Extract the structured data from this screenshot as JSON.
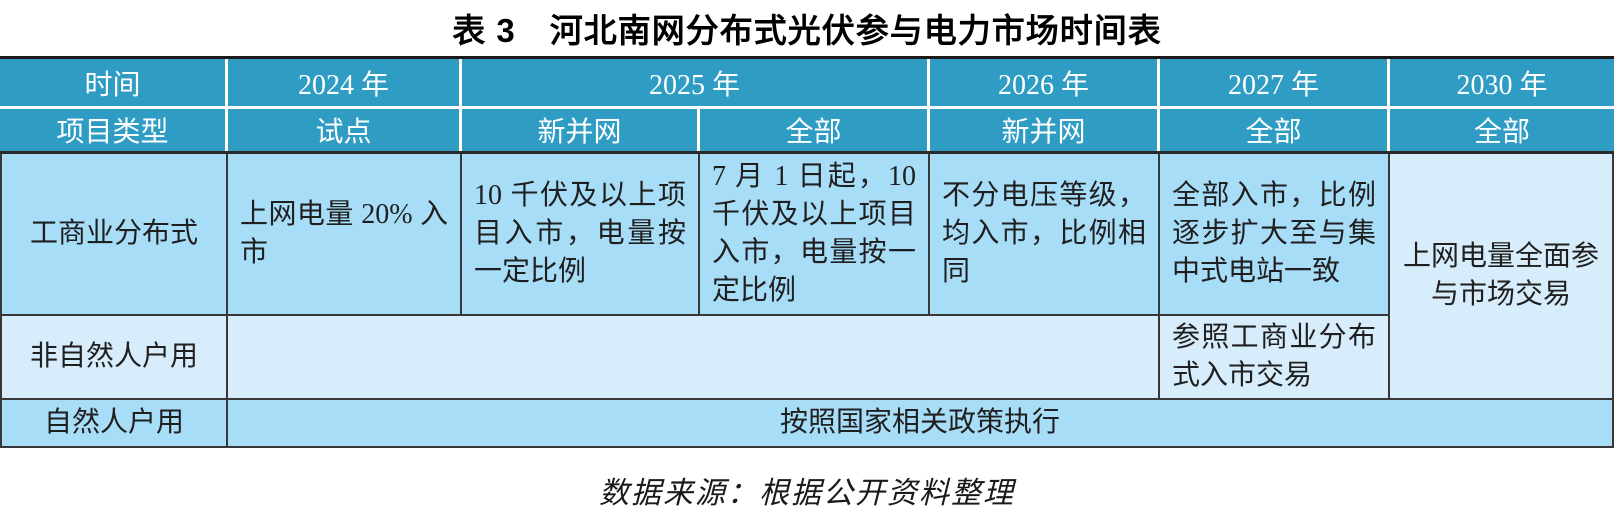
{
  "title": {
    "tag": "表 3",
    "text": "河北南网分布式光伏参与电力市场时间表"
  },
  "header": {
    "time_label": "时间",
    "project_type_label": "项目类型",
    "years": {
      "y2024": "2024 年",
      "y2025": "2025 年",
      "y2026": "2026 年",
      "y2027": "2027 年",
      "y2030": "2030 年"
    },
    "phases": {
      "p2024": "试点",
      "p2025_new": "新并网",
      "p2025_all": "全部",
      "p2026_new": "新并网",
      "p2027_all": "全部",
      "p2030_all": "全部"
    }
  },
  "body": {
    "commercial": {
      "label": "工商业分布式",
      "y2024": "上网电量 20% 入市",
      "y2025_new": "10 千伏及以上项目入市，电量按一定比例",
      "y2025_all": "7 月 1 日起，10 千伏及以上项目入市，电量按一定比例",
      "y2026": "不分电压等级，均入市，比例相同",
      "y2027": "全部入市，比例逐步扩大至与集中式电站一致"
    },
    "non_natural": {
      "label": "非自然人户用",
      "y2024_2026": "",
      "y2027": "参照工商业分布式入市交易"
    },
    "y2030_merged": "上网电量全面参与市场交易",
    "natural": {
      "label": "自然人户用",
      "all_years": "按照国家相关政策执行"
    }
  },
  "footer": {
    "source_note": "数据来源：根据公开资料整理"
  },
  "colors": {
    "header_bg": "#2f9cc4",
    "row_medium": "#a8ddf8",
    "row_light": "#d8edfb",
    "grid_line_dark": "#383838",
    "grid_line_white": "#ffffff",
    "header_text": "#ffffff",
    "body_text": "#1f1f1f"
  }
}
